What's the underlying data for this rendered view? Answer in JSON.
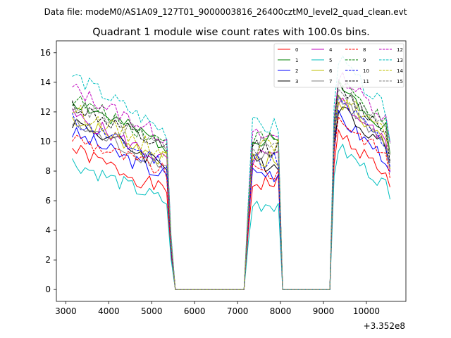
{
  "chart_data": {
    "type": "line",
    "suptitle": "Data file: modeM0/AS1A09_127T01_9000003816_26400cztM0_level2_quad_clean.evt",
    "title": "Quadrant 1 module wise count rates with 100.0s bins.",
    "xlabel": "",
    "ylabel": "",
    "x_offset_label": "+3.352e8",
    "xlim": [
      2780,
      10920
    ],
    "ylim": [
      -0.8,
      16.8
    ],
    "xticks": [
      3000,
      4000,
      5000,
      6000,
      7000,
      8000,
      9000,
      10000
    ],
    "yticks": [
      0,
      2,
      4,
      6,
      8,
      10,
      12,
      14,
      16
    ],
    "x": [
      3150,
      3250,
      3350,
      3450,
      3550,
      3650,
      3750,
      3850,
      3950,
      4050,
      4150,
      4250,
      4350,
      4450,
      4550,
      4650,
      4750,
      4850,
      4950,
      5050,
      5150,
      5250,
      5350,
      5450,
      5550,
      5650,
      7150,
      7250,
      7350,
      7450,
      7550,
      7650,
      7750,
      7850,
      7950,
      8050,
      8150,
      9050,
      9150,
      9250,
      9350,
      9450,
      9550,
      9650,
      9750,
      9850,
      9950,
      10050,
      10150,
      10250,
      10350,
      10450,
      10550
    ],
    "legend_location": "upper right",
    "series": [
      {
        "name": "0",
        "color": "#ff0000",
        "dash": "solid",
        "start": 9.5,
        "end": 6.6,
        "peak1": 7.2,
        "peak2": 10.6,
        "seed": 1
      },
      {
        "name": "1",
        "color": "#008000",
        "dash": "solid",
        "start": 12.8,
        "end": 9.7,
        "peak1": 9.9,
        "peak2": 13.8,
        "seed": 2
      },
      {
        "name": "2",
        "color": "#0000ff",
        "dash": "solid",
        "start": 10.6,
        "end": 7.6,
        "peak1": 7.9,
        "peak2": 11.7,
        "seed": 3
      },
      {
        "name": "3",
        "color": "#000000",
        "dash": "solid",
        "start": 11.4,
        "end": 8.4,
        "peak1": 8.6,
        "peak2": 12.4,
        "seed": 4
      },
      {
        "name": "4",
        "color": "#bf00bf",
        "dash": "solid",
        "start": 11.8,
        "end": 8.6,
        "peak1": 8.9,
        "peak2": 12.9,
        "seed": 5
      },
      {
        "name": "5",
        "color": "#00bfbf",
        "dash": "solid",
        "start": 8.6,
        "end": 5.9,
        "peak1": 5.8,
        "peak2": 9.6,
        "seed": 6
      },
      {
        "name": "6",
        "color": "#bfbf00",
        "dash": "solid",
        "start": 11.6,
        "end": 8.7,
        "peak1": 8.7,
        "peak2": 12.8,
        "seed": 7
      },
      {
        "name": "7",
        "color": "#808080",
        "dash": "solid",
        "start": 11.2,
        "end": 8.3,
        "peak1": 8.8,
        "peak2": 13.1,
        "seed": 8
      },
      {
        "name": "8",
        "color": "#ff0000",
        "dash": "dashed",
        "start": 10.3,
        "end": 7.9,
        "peak1": 7.9,
        "peak2": 11.6,
        "seed": 9
      },
      {
        "name": "9",
        "color": "#008000",
        "dash": "dashed",
        "start": 12.9,
        "end": 9.9,
        "peak1": 10.2,
        "peak2": 14.0,
        "seed": 10
      },
      {
        "name": "10",
        "color": "#0000ff",
        "dash": "dashed",
        "start": 11.5,
        "end": 8.5,
        "peak1": 8.8,
        "peak2": 12.8,
        "seed": 11
      },
      {
        "name": "11",
        "color": "#000000",
        "dash": "dashed",
        "start": 12.5,
        "end": 9.4,
        "peak1": 9.6,
        "peak2": 13.6,
        "seed": 12
      },
      {
        "name": "12",
        "color": "#bf00bf",
        "dash": "dashed",
        "start": 13.6,
        "end": 10.2,
        "peak1": 10.3,
        "peak2": 14.6,
        "seed": 13
      },
      {
        "name": "13",
        "color": "#00bfbf",
        "dash": "dashed",
        "start": 14.5,
        "end": 10.6,
        "peak1": 11.0,
        "peak2": 15.6,
        "seed": 14
      },
      {
        "name": "14",
        "color": "#bfbf00",
        "dash": "dashed",
        "start": 12.2,
        "end": 9.2,
        "peak1": 9.6,
        "peak2": 13.4,
        "seed": 15
      },
      {
        "name": "15",
        "color": "#808080",
        "dash": "dashed",
        "start": 12.6,
        "end": 9.6,
        "peak1": 9.7,
        "peak2": 13.7,
        "seed": 16
      }
    ]
  }
}
